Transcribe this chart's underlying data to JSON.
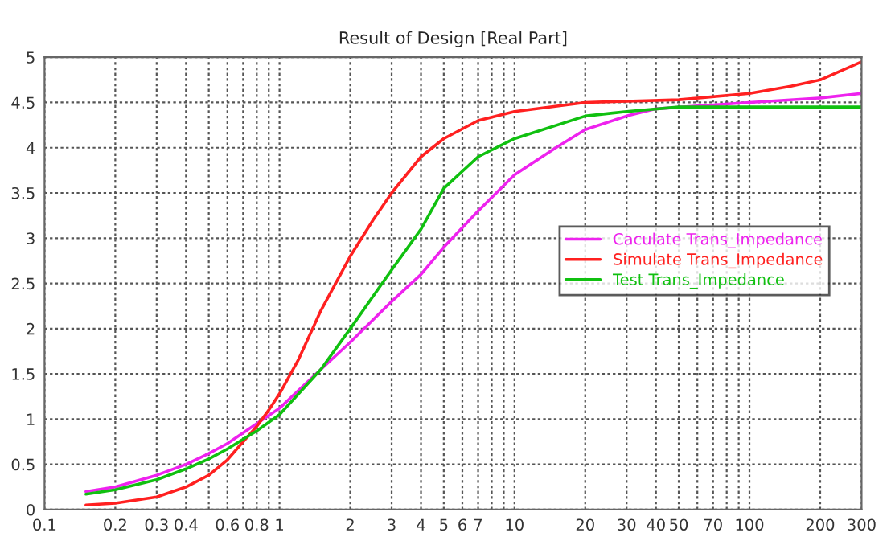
{
  "chart_data": {
    "type": "line",
    "title": "Result of Design [Real Part]",
    "log": "x",
    "xlim": [
      0.1,
      300
    ],
    "xticks": [
      0.1,
      0.2,
      0.3,
      0.4,
      {
        "value": 0.5,
        "label": null
      },
      0.6,
      {
        "value": 0.7,
        "label": null
      },
      0.8,
      {
        "value": 0.9,
        "label": null
      },
      1,
      2,
      3,
      4,
      5,
      6,
      7,
      {
        "value": 8,
        "label": null
      },
      {
        "value": 9,
        "label": null
      },
      10,
      20,
      30,
      40,
      50,
      {
        "value": 60,
        "label": null
      },
      70,
      {
        "value": 80,
        "label": null
      },
      {
        "value": 90,
        "label": null
      },
      100,
      200,
      300
    ],
    "ylim": [
      0,
      5
    ],
    "yticks": [
      0,
      0.5,
      1,
      1.5,
      2,
      2.5,
      3,
      3.5,
      4,
      4.5,
      5
    ],
    "grid": true,
    "line_style": "solid",
    "marker": "none",
    "legend": "right",
    "series": [
      {
        "name": "Caculate Trans_Impedance",
        "color": "#ee22ee",
        "x": [
          0.15,
          0.2,
          0.3,
          0.4,
          0.5,
          0.6,
          0.8,
          1,
          1.5,
          2,
          3,
          4,
          5,
          7,
          10,
          15,
          20,
          30,
          40,
          100,
          200,
          300
        ],
        "values": [
          0.2,
          0.25,
          0.38,
          0.5,
          0.62,
          0.73,
          0.95,
          1.12,
          1.55,
          1.85,
          2.3,
          2.6,
          2.9,
          3.3,
          3.7,
          4.0,
          4.2,
          4.35,
          4.43,
          4.5,
          4.55,
          4.6
        ]
      },
      {
        "name": "Simulate Trans_Impedance",
        "color": "#ff2020",
        "x": [
          0.15,
          0.2,
          0.3,
          0.4,
          0.5,
          0.6,
          0.7,
          0.8,
          0.9,
          1,
          1.2,
          1.5,
          2,
          2.5,
          3,
          4,
          5,
          7,
          10,
          20,
          50,
          100,
          150,
          200,
          300
        ],
        "values": [
          0.05,
          0.07,
          0.14,
          0.25,
          0.38,
          0.55,
          0.75,
          0.92,
          1.1,
          1.28,
          1.65,
          2.2,
          2.8,
          3.2,
          3.5,
          3.9,
          4.1,
          4.3,
          4.4,
          4.5,
          4.53,
          4.6,
          4.68,
          4.75,
          4.95
        ]
      },
      {
        "name": "Test Trans_Impedance",
        "color": "#10c010",
        "x": [
          0.15,
          0.2,
          0.3,
          0.4,
          0.5,
          0.6,
          0.8,
          1,
          1.5,
          2,
          3,
          4,
          5,
          7,
          10,
          20,
          30,
          50,
          100,
          300
        ],
        "values": [
          0.17,
          0.22,
          0.33,
          0.45,
          0.56,
          0.67,
          0.87,
          1.05,
          1.55,
          2.0,
          2.65,
          3.1,
          3.55,
          3.9,
          4.1,
          4.35,
          4.4,
          4.45,
          4.45,
          4.45
        ]
      }
    ]
  }
}
